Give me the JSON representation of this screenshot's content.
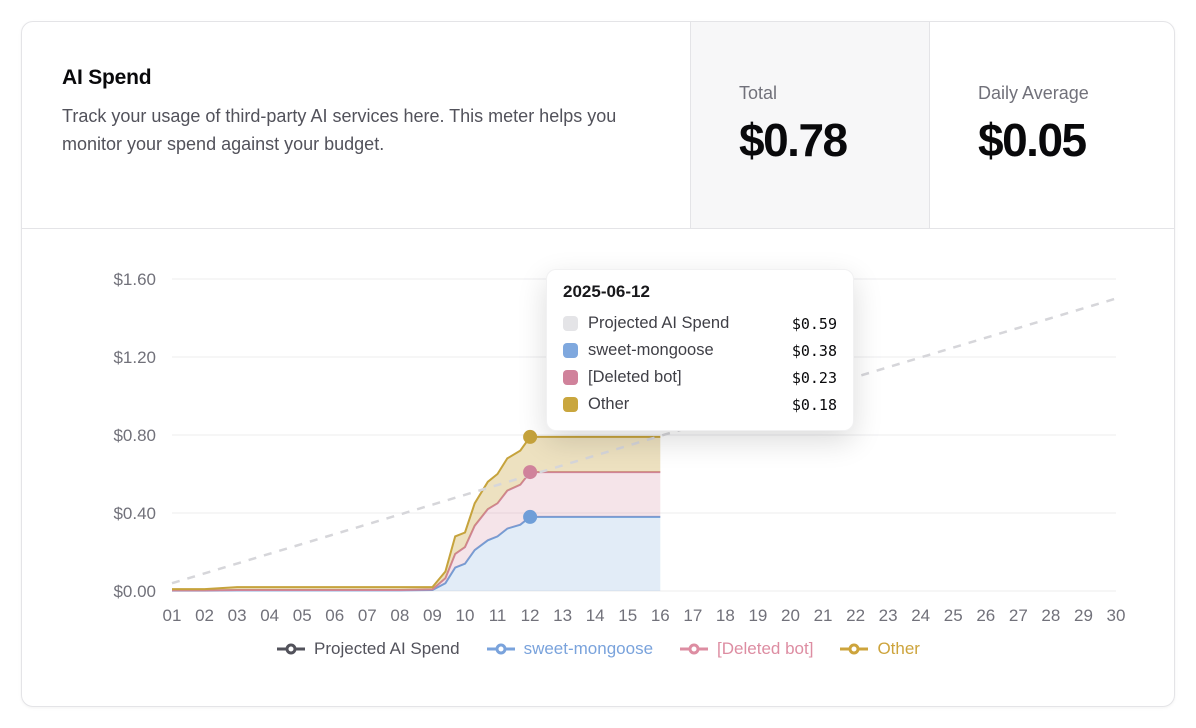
{
  "header": {
    "title": "AI Spend",
    "description": "Track your usage of third-party AI services here. This meter helps you monitor your spend against your budget.",
    "stats": [
      {
        "label": "Total",
        "value": "$0.78"
      },
      {
        "label": "Daily Average",
        "value": "$0.05"
      }
    ]
  },
  "tooltip": {
    "date": "2025-06-12",
    "rows": [
      {
        "name": "Projected AI Spend",
        "value": "$0.59",
        "color": "#e4e4e7"
      },
      {
        "name": "sweet-mongoose",
        "value": "$0.38",
        "color": "#7fa8de"
      },
      {
        "name": "[Deleted bot]",
        "value": "$0.23",
        "color": "#d0829b"
      },
      {
        "name": "Other",
        "value": "$0.18",
        "color": "#c9a63e"
      }
    ]
  },
  "legend": [
    {
      "id": "projected-ai-spend",
      "label": "Projected AI Spend",
      "color": "#52525b"
    },
    {
      "id": "sweet-mongoose",
      "label": "sweet-mongoose",
      "color": "#7aa3dc"
    },
    {
      "id": "deleted-bot",
      "label": "[Deleted bot]",
      "color": "#dd8da2"
    },
    {
      "id": "other",
      "label": "Other",
      "color": "#cda43c"
    }
  ],
  "chart_data": {
    "type": "area",
    "stacked": true,
    "title": "AI Spend by bot, June 2025",
    "ylim": [
      0,
      1.6
    ],
    "yticks": [
      0,
      0.4,
      0.8,
      1.2,
      1.6
    ],
    "ytick_labels": [
      "$0.00",
      "$0.40",
      "$0.80",
      "$1.20",
      "$1.60"
    ],
    "xtick_labels": [
      "01",
      "02",
      "03",
      "04",
      "05",
      "06",
      "07",
      "08",
      "09",
      "10",
      "11",
      "12",
      "13",
      "14",
      "15",
      "16",
      "17",
      "18",
      "19",
      "20",
      "21",
      "22",
      "23",
      "24",
      "25",
      "26",
      "27",
      "28",
      "29",
      "30"
    ],
    "x": [
      1,
      2,
      3,
      4,
      5,
      6,
      7,
      8,
      9,
      9.4,
      9.7,
      10,
      10.3,
      10.7,
      11,
      11.3,
      11.7,
      12,
      13,
      14,
      15,
      16
    ],
    "series": [
      {
        "name": "sweet-mongoose",
        "color": "#6f9ed8",
        "fill": "rgba(111,158,216,0.20)",
        "values": [
          0.002,
          0.002,
          0.003,
          0.003,
          0.003,
          0.003,
          0.003,
          0.003,
          0.005,
          0.04,
          0.12,
          0.14,
          0.21,
          0.26,
          0.28,
          0.32,
          0.34,
          0.38,
          0.38,
          0.38,
          0.38,
          0.38
        ]
      },
      {
        "name": "[Deleted bot]",
        "color": "#d0829b",
        "fill": "rgba(208,130,155,0.22)",
        "values": [
          0.001,
          0.001,
          0.002,
          0.002,
          0.002,
          0.002,
          0.002,
          0.002,
          0.003,
          0.025,
          0.07,
          0.085,
          0.125,
          0.16,
          0.17,
          0.195,
          0.205,
          0.23,
          0.23,
          0.23,
          0.23,
          0.23
        ]
      },
      {
        "name": "Other",
        "color": "#c6a33c",
        "fill": "rgba(198,163,60,0.32)",
        "values": [
          0.007,
          0.007,
          0.015,
          0.015,
          0.015,
          0.015,
          0.015,
          0.015,
          0.012,
          0.035,
          0.09,
          0.075,
          0.115,
          0.14,
          0.15,
          0.165,
          0.175,
          0.18,
          0.18,
          0.18,
          0.18,
          0.18
        ]
      }
    ],
    "projected": {
      "name": "Projected AI Spend",
      "color": "#d6d6da",
      "x": [
        1,
        30
      ],
      "y": [
        0.04,
        1.5
      ]
    },
    "active_day": 12
  }
}
